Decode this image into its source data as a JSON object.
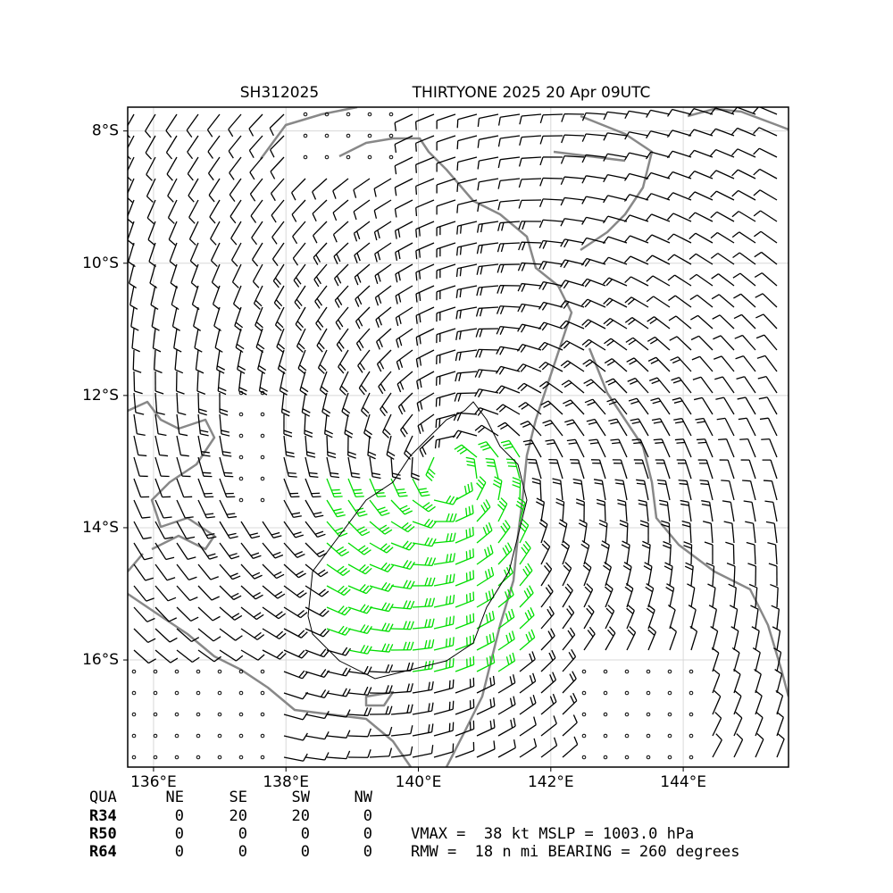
{
  "chart_data": {
    "type": "map",
    "title_id": "SH312025",
    "title": "THIRTYONE 2025 20 Apr 09UTC",
    "xlim": [
      135.61,
      145.59
    ],
    "ylim": [
      -17.62,
      -7.64
    ],
    "xticks": [
      {
        "value": 136,
        "label": "136°E"
      },
      {
        "value": 138,
        "label": "138°E"
      },
      {
        "value": 140,
        "label": "140°E"
      },
      {
        "value": 142,
        "label": "142°E"
      },
      {
        "value": 144,
        "label": "144°E"
      }
    ],
    "yticks": [
      {
        "value": -8,
        "label": "8°S"
      },
      {
        "value": -10,
        "label": "10°S"
      },
      {
        "value": -12,
        "label": "12°S"
      },
      {
        "value": -14,
        "label": "14°S"
      },
      {
        "value": -16,
        "label": "16°S"
      }
    ],
    "grid": true
  },
  "table": {
    "header": [
      "QUA",
      "NE",
      "SE",
      "SW",
      "NW"
    ],
    "rows": [
      [
        "R34",
        0,
        20,
        20,
        0
      ],
      [
        "R50",
        0,
        0,
        0,
        0
      ],
      [
        "R64",
        0,
        0,
        0,
        0
      ]
    ]
  },
  "notes": [
    "VMAX =  38 kt MSLP = 1003.0 hPa",
    "RMW =  18 n mi BEARING = 260 degrees"
  ]
}
